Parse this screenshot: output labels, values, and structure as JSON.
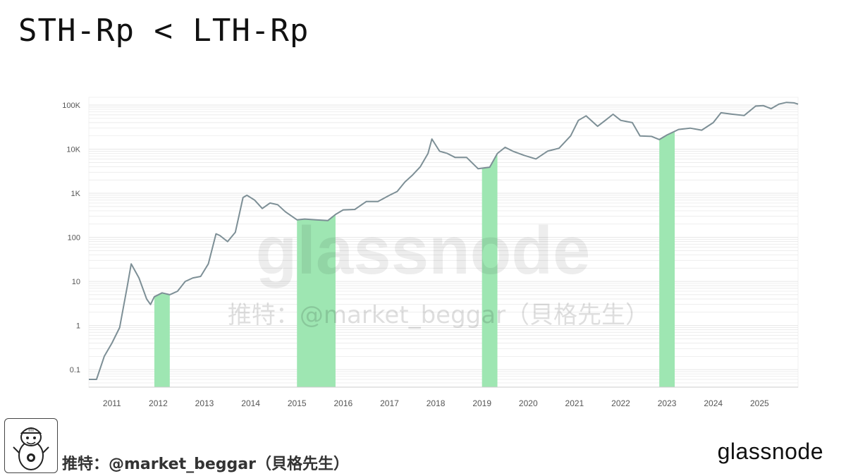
{
  "title": "STH-Rp < LTH-Rp",
  "footer_credit": "推特：@market_beggar（貝格先生）",
  "watermark_credit": "推特：@market_beggar（貝格先生）",
  "watermark_brand": "glassnode",
  "brand_logo": "glassnode",
  "colors": {
    "line": "#7d8f96",
    "highlight": "#9ee6b2",
    "grid": "#e6e6e6",
    "axis": "#555555"
  },
  "icons": {
    "avatar": "cartoon-character-icon"
  },
  "chart_data": {
    "type": "line",
    "y_scale": "log",
    "ylim": [
      0.04,
      150000
    ],
    "xlim": [
      "2010-07",
      "2025-11"
    ],
    "grid": true,
    "y_ticks": [
      {
        "value": 0.1,
        "label": "0.1"
      },
      {
        "value": 1,
        "label": "1"
      },
      {
        "value": 10,
        "label": "10"
      },
      {
        "value": 100,
        "label": "100"
      },
      {
        "value": 1000,
        "label": "1K"
      },
      {
        "value": 10000,
        "label": "10K"
      },
      {
        "value": 100000,
        "label": "100K"
      }
    ],
    "x_ticks": [
      "2011",
      "2012",
      "2013",
      "2014",
      "2015",
      "2016",
      "2017",
      "2018",
      "2019",
      "2020",
      "2021",
      "2022",
      "2023",
      "2024",
      "2025"
    ],
    "series": [
      {
        "x": [
          "2010-07",
          "2010-09",
          "2010-11",
          "2011-01",
          "2011-03",
          "2011-05",
          "2011-06",
          "2011-08",
          "2011-10",
          "2011-11",
          "2011-12",
          "2012-02",
          "2012-04",
          "2012-06",
          "2012-08",
          "2012-10",
          "2012-12",
          "2013-02",
          "2013-04",
          "2013-05",
          "2013-07",
          "2013-09",
          "2013-11",
          "2013-12",
          "2014-02",
          "2014-04",
          "2014-06",
          "2014-08",
          "2014-10",
          "2015-01",
          "2015-03",
          "2015-06",
          "2015-09",
          "2015-11",
          "2016-01",
          "2016-04",
          "2016-07",
          "2016-10",
          "2017-01",
          "2017-03",
          "2017-05",
          "2017-07",
          "2017-09",
          "2017-11",
          "2017-12",
          "2018-02",
          "2018-04",
          "2018-06",
          "2018-09",
          "2018-12",
          "2019-03",
          "2019-05",
          "2019-07",
          "2019-09",
          "2019-12",
          "2020-03",
          "2020-06",
          "2020-09",
          "2020-12",
          "2021-02",
          "2021-04",
          "2021-07",
          "2021-09",
          "2021-11",
          "2022-01",
          "2022-04",
          "2022-06",
          "2022-09",
          "2022-11",
          "2023-01",
          "2023-04",
          "2023-07",
          "2023-10",
          "2024-01",
          "2024-03",
          "2024-06",
          "2024-09",
          "2024-12",
          "2025-02",
          "2025-04",
          "2025-06",
          "2025-08",
          "2025-10",
          "2025-11"
        ],
        "y": [
          0.06,
          0.06,
          0.2,
          0.4,
          0.9,
          8,
          25,
          12,
          4,
          3,
          4.5,
          5.5,
          5,
          6,
          10,
          12,
          13,
          25,
          120,
          110,
          80,
          130,
          800,
          900,
          700,
          450,
          600,
          550,
          380,
          250,
          260,
          250,
          240,
          330,
          420,
          430,
          650,
          650,
          900,
          1100,
          1800,
          2600,
          4000,
          8000,
          17000,
          9000,
          8000,
          6500,
          6500,
          3600,
          3900,
          8000,
          11000,
          9000,
          7200,
          6000,
          9000,
          10500,
          20000,
          45000,
          57000,
          33000,
          45000,
          62000,
          45000,
          40000,
          20000,
          19500,
          16500,
          21000,
          28000,
          30000,
          27000,
          40000,
          67000,
          62000,
          58000,
          95000,
          97000,
          83000,
          105000,
          115000,
          112000,
          105000
        ]
      }
    ],
    "highlight_ranges": [
      [
        "2011-12",
        "2012-04"
      ],
      [
        "2015-01",
        "2015-11"
      ],
      [
        "2019-01",
        "2019-05"
      ],
      [
        "2022-11",
        "2023-03"
      ]
    ]
  }
}
